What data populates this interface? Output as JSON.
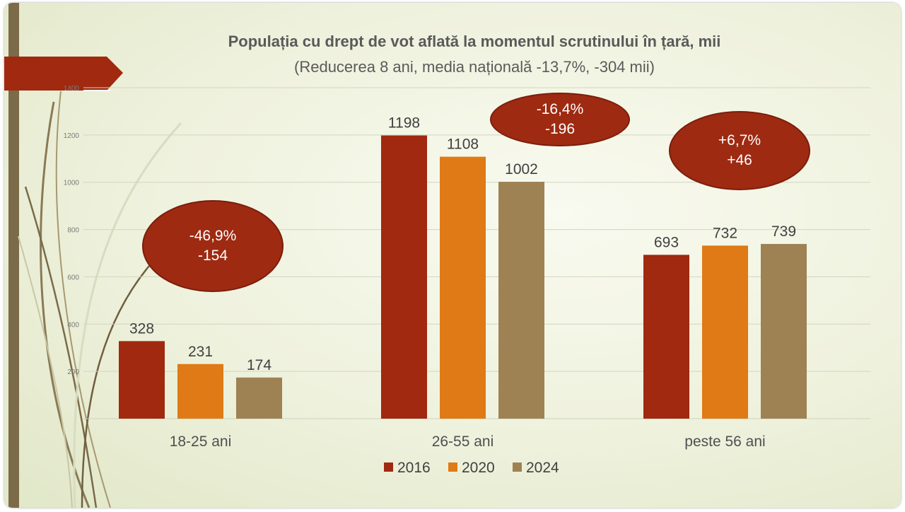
{
  "chart_data": {
    "type": "bar",
    "title": "Populația cu drept de vot aflată la momentul scrutinului în țară, mii",
    "subtitle": "(Reducerea 8 ani, media națională -13,7%, -304 mii)",
    "categories": [
      "18-25 ani",
      "26-55 ani",
      "peste 56 ani"
    ],
    "series": [
      {
        "name": "2016",
        "values": [
          328,
          1198,
          693
        ],
        "color": "#a0290f"
      },
      {
        "name": "2020",
        "values": [
          231,
          1108,
          732
        ],
        "color": "#df7a16"
      },
      {
        "name": "2024",
        "values": [
          174,
          1002,
          739
        ],
        "color": "#9e8254"
      }
    ],
    "ylim": [
      0,
      1400
    ],
    "yticks": [
      200,
      400,
      600,
      800,
      1000,
      1200,
      1400
    ],
    "grid": true,
    "legend": "bottom",
    "annotations": [
      {
        "category": "18-25 ani",
        "lines": [
          "-46,9%",
          "-154"
        ]
      },
      {
        "category": "26-55 ani",
        "lines": [
          "-16,4%",
          "-196"
        ]
      },
      {
        "category": "peste 56 ani",
        "lines": [
          "+6,7%",
          "+46"
        ]
      }
    ]
  },
  "colors": {
    "accent": "#9e2a12",
    "text": "#5a5a5a",
    "background": "#eef1dc",
    "sidebar": "#7b6b49"
  }
}
